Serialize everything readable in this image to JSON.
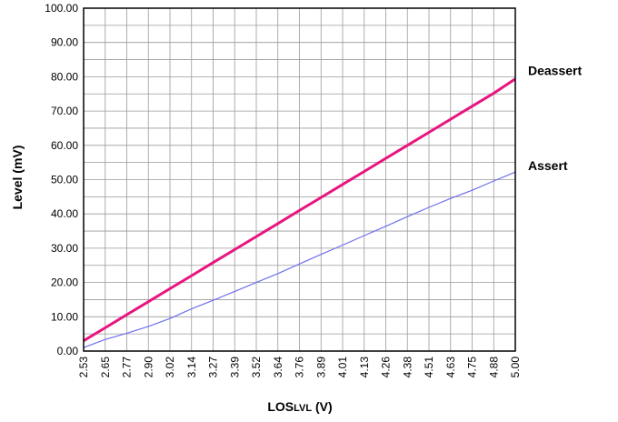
{
  "chart_data": {
    "type": "line",
    "xlabel_main": "LOS",
    "xlabel_sub": "LVL",
    "xlabel_unit": " (V)",
    "ylabel": "Level (mV)",
    "ylim": [
      0,
      100
    ],
    "y_ticks": [
      "0.00",
      "10.00",
      "20.00",
      "30.00",
      "40.00",
      "50.00",
      "60.00",
      "70.00",
      "80.00",
      "90.00",
      "100.00"
    ],
    "categories": [
      "2.53",
      "2.65",
      "2.77",
      "2.90",
      "3.02",
      "3.14",
      "3.27",
      "3.39",
      "3.52",
      "3.64",
      "3.76",
      "3.89",
      "4.01",
      "4.13",
      "4.26",
      "4.38",
      "4.51",
      "4.63",
      "4.75",
      "4.88",
      "5.00"
    ],
    "grid": true,
    "series": [
      {
        "name": "Deassert",
        "color": "#e8157f",
        "values": [
          3.0,
          6.8,
          10.6,
          14.4,
          18.2,
          22.0,
          25.8,
          29.6,
          33.4,
          37.2,
          41.0,
          44.8,
          48.6,
          52.4,
          56.2,
          60.0,
          63.8,
          67.6,
          71.4,
          75.2,
          79.4
        ]
      },
      {
        "name": "Assert",
        "color": "#6f6ff0",
        "values": [
          1.0,
          3.4,
          5.2,
          7.2,
          9.5,
          12.3,
          14.8,
          17.4,
          20.0,
          22.6,
          25.4,
          28.2,
          30.9,
          33.7,
          36.4,
          39.2,
          41.9,
          44.5,
          46.9,
          49.6,
          52.2
        ]
      }
    ]
  }
}
